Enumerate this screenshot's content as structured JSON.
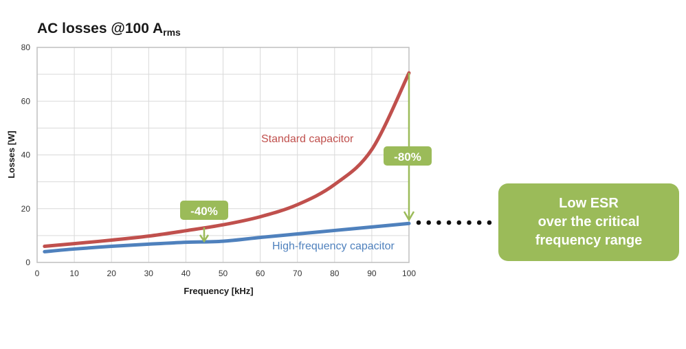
{
  "title": {
    "main": "AC losses @100 A",
    "subscript": "rms"
  },
  "colors": {
    "standard": "#c0504d",
    "high_frequency": "#4f81bd",
    "accent_green": "#9bbb59",
    "grid": "#d9d9d9",
    "axis_frame": "#bfbfbf"
  },
  "annotations": {
    "badge_40": "-40%",
    "badge_80": "-80%",
    "callout_lines": [
      "Low ESR",
      "over the critical",
      "frequency range"
    ]
  },
  "chart_data": {
    "type": "line",
    "title": "AC losses @100 Arms",
    "xlabel": "Frequency [kHz]",
    "ylabel": "Losses [W]",
    "xlim": [
      0,
      100
    ],
    "ylim": [
      0,
      80
    ],
    "xticks": [
      0,
      10,
      20,
      30,
      40,
      50,
      60,
      70,
      80,
      90,
      100
    ],
    "yticks": [
      0,
      20,
      40,
      60,
      80
    ],
    "grid": true,
    "x": [
      2,
      10,
      20,
      30,
      40,
      50,
      60,
      70,
      80,
      90,
      100
    ],
    "series": [
      {
        "name": "Standard capacitor",
        "values": [
          6.0,
          7.0,
          8.3,
          9.8,
          11.8,
          14.0,
          17.0,
          21.5,
          29.0,
          42.0,
          70.5
        ]
      },
      {
        "name": "High-frequency capacitor",
        "values": [
          4.0,
          5.0,
          6.0,
          6.8,
          7.5,
          7.9,
          9.3,
          10.6,
          11.9,
          13.2,
          14.5
        ]
      }
    ],
    "annotations": [
      {
        "text": "-40%",
        "x": 45,
        "from": 12.8,
        "to": 7.7
      },
      {
        "text": "-80%",
        "x": 100,
        "from": 70.5,
        "to": 14.5
      },
      {
        "text": "Low ESR over the critical frequency range",
        "position": "right"
      }
    ],
    "legend": "inline labels"
  }
}
